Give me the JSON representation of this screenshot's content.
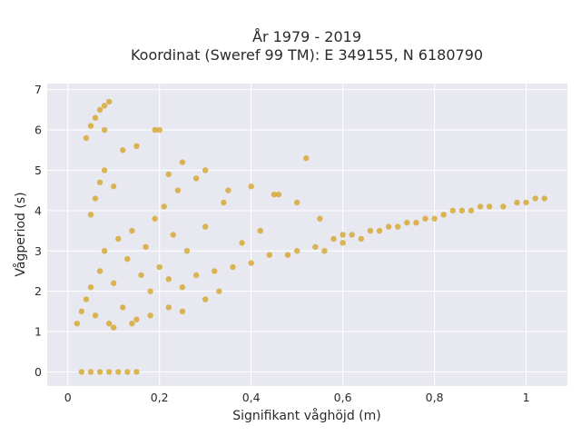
{
  "chart_data": {
    "type": "scatter",
    "title_line1": "År 1979 - 2019",
    "title_line2": "Koordinat (Sweref 99 TM): E 349155, N 6180790",
    "xlabel": "Signifikant våghöjd (m)",
    "ylabel": "Vågperiod (s)",
    "xlim": [
      -0.045,
      1.09
    ],
    "ylim": [
      -0.35,
      7.15
    ],
    "x_ticks": [
      0,
      0.2,
      0.4,
      0.6,
      0.8,
      1
    ],
    "x_tick_labels": [
      "0",
      "0,2",
      "0,4",
      "0,6",
      "0,8",
      "1"
    ],
    "y_ticks": [
      0,
      1,
      2,
      3,
      4,
      5,
      6,
      7
    ],
    "y_tick_labels": [
      "0",
      "1",
      "2",
      "3",
      "4",
      "5",
      "6",
      "7"
    ],
    "grid": true,
    "marker_color": "#D4A21E",
    "background_color": "#E8E8F0",
    "points": [
      [
        0.03,
        0.0
      ],
      [
        0.05,
        0.0
      ],
      [
        0.07,
        0.0
      ],
      [
        0.09,
        0.0
      ],
      [
        0.11,
        0.0
      ],
      [
        0.13,
        0.0
      ],
      [
        0.15,
        0.0
      ],
      [
        0.02,
        1.2
      ],
      [
        0.03,
        1.5
      ],
      [
        0.04,
        1.8
      ],
      [
        0.05,
        2.1
      ],
      [
        0.06,
        1.4
      ],
      [
        0.07,
        2.5
      ],
      [
        0.08,
        3.0
      ],
      [
        0.09,
        1.2
      ],
      [
        0.1,
        2.2
      ],
      [
        0.11,
        3.3
      ],
      [
        0.12,
        1.6
      ],
      [
        0.13,
        2.8
      ],
      [
        0.14,
        3.5
      ],
      [
        0.15,
        1.3
      ],
      [
        0.16,
        2.4
      ],
      [
        0.17,
        3.1
      ],
      [
        0.18,
        2.0
      ],
      [
        0.19,
        3.8
      ],
      [
        0.2,
        2.6
      ],
      [
        0.21,
        4.1
      ],
      [
        0.22,
        2.3
      ],
      [
        0.23,
        3.4
      ],
      [
        0.24,
        4.5
      ],
      [
        0.25,
        2.1
      ],
      [
        0.26,
        3.0
      ],
      [
        0.28,
        2.4
      ],
      [
        0.3,
        3.6
      ],
      [
        0.32,
        2.5
      ],
      [
        0.34,
        4.2
      ],
      [
        0.36,
        2.6
      ],
      [
        0.38,
        3.2
      ],
      [
        0.4,
        2.7
      ],
      [
        0.42,
        3.5
      ],
      [
        0.44,
        2.9
      ],
      [
        0.46,
        4.4
      ],
      [
        0.48,
        2.9
      ],
      [
        0.5,
        3.0
      ],
      [
        0.52,
        5.3
      ],
      [
        0.54,
        3.1
      ],
      [
        0.56,
        3.0
      ],
      [
        0.58,
        3.3
      ],
      [
        0.6,
        3.2
      ],
      [
        0.62,
        3.4
      ],
      [
        0.64,
        3.3
      ],
      [
        0.66,
        3.5
      ],
      [
        0.68,
        3.5
      ],
      [
        0.7,
        3.6
      ],
      [
        0.72,
        3.6
      ],
      [
        0.74,
        3.7
      ],
      [
        0.76,
        3.7
      ],
      [
        0.78,
        3.8
      ],
      [
        0.8,
        3.8
      ],
      [
        0.82,
        3.9
      ],
      [
        0.84,
        4.0
      ],
      [
        0.86,
        4.0
      ],
      [
        0.88,
        4.0
      ],
      [
        0.9,
        4.1
      ],
      [
        0.92,
        4.1
      ],
      [
        0.95,
        4.1
      ],
      [
        0.98,
        4.2
      ],
      [
        1.0,
        4.2
      ],
      [
        1.02,
        4.3
      ],
      [
        1.04,
        4.3
      ],
      [
        0.04,
        5.8
      ],
      [
        0.05,
        6.1
      ],
      [
        0.06,
        6.3
      ],
      [
        0.07,
        6.5
      ],
      [
        0.08,
        6.6
      ],
      [
        0.09,
        6.7
      ],
      [
        0.08,
        6.0
      ],
      [
        0.06,
        4.3
      ],
      [
        0.07,
        4.7
      ],
      [
        0.08,
        5.0
      ],
      [
        0.1,
        4.6
      ],
      [
        0.12,
        5.5
      ],
      [
        0.15,
        5.6
      ],
      [
        0.19,
        6.0
      ],
      [
        0.2,
        6.0
      ],
      [
        0.22,
        4.9
      ],
      [
        0.25,
        5.2
      ],
      [
        0.28,
        4.8
      ],
      [
        0.3,
        5.0
      ],
      [
        0.35,
        4.5
      ],
      [
        0.4,
        4.6
      ],
      [
        0.45,
        4.4
      ],
      [
        0.5,
        4.2
      ],
      [
        0.55,
        3.8
      ],
      [
        0.6,
        3.4
      ],
      [
        0.05,
        3.9
      ],
      [
        0.1,
        1.1
      ],
      [
        0.14,
        1.2
      ],
      [
        0.18,
        1.4
      ],
      [
        0.22,
        1.6
      ],
      [
        0.25,
        1.5
      ],
      [
        0.3,
        1.8
      ],
      [
        0.33,
        2.0
      ]
    ]
  }
}
